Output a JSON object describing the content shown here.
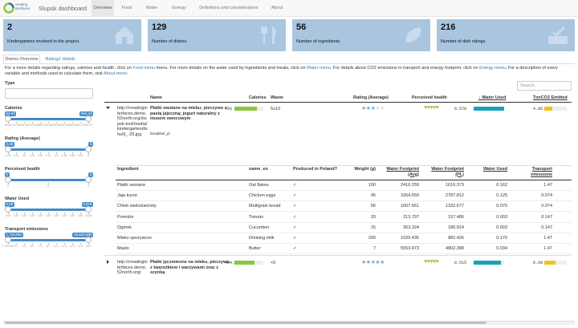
{
  "navbar": {
    "brand": "creating interfaces",
    "title": "Slupsk dashboard",
    "tabs": [
      "Overview",
      "Food",
      "Water",
      "Energy",
      "Definitions and considerations",
      "About"
    ]
  },
  "value_boxes": [
    {
      "value": "2",
      "label": "Kindergartens involved in the project."
    },
    {
      "value": "129",
      "label": "Number of dishes."
    },
    {
      "value": "56",
      "label": "Number of ingredients."
    },
    {
      "value": "216",
      "label": "Number of dish ratings."
    }
  ],
  "tabs": [
    "Dishes Overview",
    "Ratings' details"
  ],
  "intro": [
    "For a more details regarding ratings, calories and health, click on ",
    "Food menu",
    " menu. For more details on the water used by ingredients and meals, click on ",
    "Water menu",
    ". For details about CO2 emissions in transport and energy footprint, click on ",
    "Energy menu",
    ". For a description of every variable and methods used to calculate them, visit ",
    "About menu"
  ],
  "sidebar": {
    "type_label": "Type",
    "filters": [
      {
        "label": "Calories",
        "min": 53.83,
        "max": 591.42,
        "ticks": [
          "53.83",
          "107.59",
          "161.35",
          "215.11",
          "268.87",
          "322.63",
          "376.39",
          "430.15",
          "483.91",
          "537.67",
          "591.42"
        ]
      },
      {
        "label": "Rating (Average)",
        "min": 3.25,
        "max": 5,
        "ticks": [
          "3.25",
          "3.43",
          "3.6",
          "3.78",
          "3.95",
          "4.13",
          "4.3",
          "4.48",
          "4.65",
          "4.83",
          "5"
        ]
      },
      {
        "label": "Perceived health",
        "min": 5,
        "max": 5,
        "ticks": [
          "5",
          "5",
          "5"
        ]
      },
      {
        "label": "Water Used",
        "min": 0.08,
        "max": 0.578,
        "ticks": [
          "0.08",
          "0.13",
          "0.18",
          "0.23",
          "0.28",
          "0.33",
          "0.38",
          "0.43",
          "0.48",
          "0.53",
          "0.578"
        ]
      },
      {
        "label": "Transport emissions",
        "min": "1,730,081",
        "max": "15,624,605",
        "ticks": [
          "1,730,081",
          "3.1",
          "4.5",
          "5.9",
          "7.3",
          "8.7",
          "10.1",
          "11.5",
          "12.9",
          "14.3",
          "15.6"
        ]
      }
    ]
  },
  "table": {
    "search_placeholder": "Search...",
    "headers": [
      "Name",
      "Calories",
      "Waste",
      "Rating (Average)",
      "Perceived health",
      "↓ Water Used",
      "TonCO2 Emitted"
    ],
    "ingredient_headers": [
      "Ingredient",
      "name_en",
      "Produced in Poland?",
      "Weight (g)",
      "Water Footprint (Avg)",
      "Water Footprint (PL)",
      "Water Used",
      "Transport emissions"
    ],
    "rows": [
      {
        "image": "http://creatinginterfaces.demo.52north.org/slupsk-tool/media/kindergartendishs/6_-25.jpg",
        "name": "Płatki owsiane na mleku; pieczywo z pastą jajeczną; jogurt naturalny z musem owocowym",
        "meal": "breakfast_pl",
        "calories": 456,
        "waste": "5≤10",
        "rating": 3,
        "health": 5,
        "water": 0.578,
        "co2": 4.85,
        "ingredients": [
          [
            "Płatki owsiane",
            "Oat flakes",
            "✓",
            100,
            2416.259,
            1616.373,
            0.162,
            1.47
          ],
          [
            "Jaja kurze",
            "Chicken eggs",
            "✓",
            45,
            3264.559,
            2787.812,
            0.125,
            0.074
          ],
          [
            "Chleb wieloziarnisty",
            "Multigrain bread",
            "✓",
            56,
            1607.661,
            1332.677,
            0.075,
            0.074
          ],
          [
            "Pomidor",
            "Tomato",
            "✓",
            20,
            213.797,
            157.486,
            0.003,
            0.147
          ],
          [
            "Ogórek",
            "Cucumber",
            "✓",
            15,
            353.324,
            186.814,
            0.003,
            0.147
          ],
          [
            "Mleko spożywcze",
            "Drinking milk",
            "✓",
            200,
            1020.435,
            882.426,
            0.176,
            1.47
          ],
          [
            "Masło",
            "Butter",
            "✓",
            7,
            5553.473,
            4802.388,
            0.034,
            1.47
          ]
        ]
      },
      {
        "image": "http://creatinginterfaces.demo.52north.org/",
        "name": "Płatki jęczmienne na mleku, pieczywo z twarożkiem i warzywami oraz z szynką",
        "calories": 404.83,
        "waste": "<5",
        "rating": 5,
        "health": 5,
        "water": 0.515,
        "co2": 6.69
      }
    ]
  }
}
